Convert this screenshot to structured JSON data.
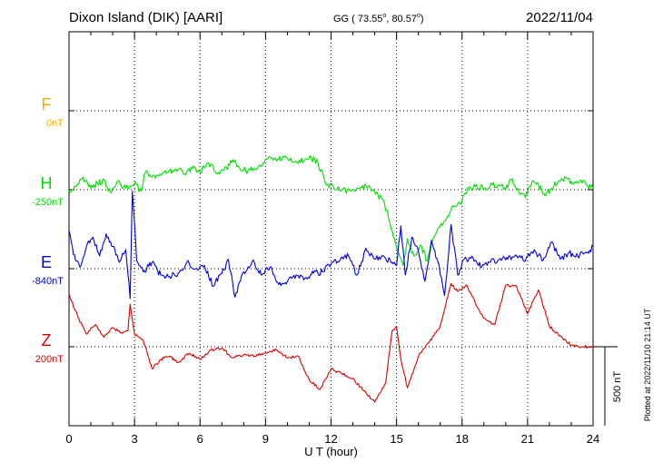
{
  "header": {
    "station": "Dixon Island (DIK)  [AARI]",
    "coords_prefix": "GG ( 73.55",
    "coords_mid": ",  80.57",
    "coords_suffix": ")",
    "degree_mark": "o",
    "date": "2022/11/04"
  },
  "footer": {
    "plotted_note": "Plotted at 2022/11/10 21:14 UT"
  },
  "chart_data": {
    "type": "line",
    "title": "Dixon Island (DIK)  [AARI]",
    "xlabel": "U T (hour)",
    "xlim": [
      0,
      24
    ],
    "x_ticks": [
      0,
      3,
      6,
      9,
      12,
      15,
      18,
      21,
      24
    ],
    "x_tick_labels": [
      "0",
      "3",
      "6",
      "9",
      "12",
      "15",
      "18",
      "21",
      "24"
    ],
    "grid": true,
    "scale_bar": {
      "label": "500 nT",
      "value_nT": 500
    },
    "colors": {
      "F": "#f0b400",
      "H": "#00e000",
      "E": "#0000dd",
      "Z": "#dd0000"
    },
    "series": [
      {
        "name": "F",
        "baseline_label": "0nT",
        "baseline_value": 0,
        "values": []
      },
      {
        "name": "H",
        "baseline_label": "-250nT",
        "baseline_value": -250,
        "x": [
          0,
          0.3,
          0.6,
          1.0,
          1.3,
          1.6,
          1.9,
          2.2,
          2.6,
          3.0,
          3.3,
          3.5,
          3.8,
          4.2,
          4.6,
          5.0,
          5.3,
          5.7,
          6.0,
          6.4,
          6.8,
          7.2,
          7.5,
          7.8,
          8.2,
          8.5,
          8.9,
          9.2,
          9.6,
          10.0,
          10.4,
          10.8,
          11.1,
          11.4,
          11.8,
          12.1,
          12.5,
          12.9,
          13.3,
          13.7,
          14.0,
          14.3,
          14.6,
          14.9,
          15.1,
          15.3,
          15.5,
          15.8,
          16.1,
          16.4,
          16.7,
          17.0,
          17.3,
          17.6,
          18.0,
          18.3,
          18.6,
          19.0,
          19.3,
          19.7,
          20.0,
          20.3,
          20.6,
          20.9,
          21.2,
          21.5,
          21.8,
          22.1,
          22.4,
          22.8,
          23.1,
          23.4,
          23.7,
          24.0
        ],
        "values": [
          -255,
          -230,
          -180,
          -240,
          -210,
          -190,
          -270,
          -200,
          -240,
          -210,
          -260,
          -140,
          -170,
          -160,
          -130,
          -120,
          -150,
          -100,
          -140,
          -80,
          -150,
          -110,
          -60,
          -110,
          -130,
          -120,
          -80,
          -40,
          -60,
          -50,
          -70,
          -60,
          -50,
          -80,
          -220,
          -230,
          -250,
          -260,
          -240,
          -230,
          -270,
          -300,
          -400,
          -560,
          -650,
          -730,
          -560,
          -670,
          -600,
          -700,
          -550,
          -480,
          -430,
          -360,
          -320,
          -240,
          -230,
          -240,
          -220,
          -220,
          -250,
          -180,
          -270,
          -300,
          -200,
          -220,
          -290,
          -240,
          -200,
          -180,
          -210,
          -190,
          -220,
          -240
        ]
      },
      {
        "name": "E",
        "baseline_label": "-840nT",
        "baseline_value": -840,
        "x": [
          0,
          0.2,
          0.5,
          0.8,
          1.1,
          1.4,
          1.7,
          2.0,
          2.3,
          2.6,
          2.8,
          2.9,
          3.1,
          3.4,
          3.8,
          4.2,
          4.6,
          5.0,
          5.4,
          5.8,
          6.2,
          6.6,
          7.0,
          7.3,
          7.6,
          8.0,
          8.4,
          8.8,
          9.2,
          9.6,
          10.0,
          10.4,
          10.8,
          11.2,
          11.6,
          12.0,
          12.4,
          12.8,
          13.2,
          13.6,
          14.0,
          14.4,
          14.8,
          15.0,
          15.2,
          15.4,
          15.7,
          16.0,
          16.3,
          16.6,
          16.9,
          17.2,
          17.5,
          17.8,
          18.1,
          18.5,
          18.9,
          19.3,
          19.7,
          20.1,
          20.5,
          20.9,
          21.3,
          21.7,
          22.1,
          22.5,
          22.9,
          23.3,
          23.7,
          24.0
        ],
        "values": [
          -600,
          -750,
          -830,
          -700,
          -640,
          -760,
          -620,
          -700,
          -800,
          -720,
          -1030,
          -350,
          -790,
          -860,
          -800,
          -880,
          -890,
          -870,
          -800,
          -840,
          -820,
          -950,
          -870,
          -780,
          -1020,
          -860,
          -790,
          -880,
          -830,
          -940,
          -920,
          -880,
          -900,
          -870,
          -860,
          -810,
          -790,
          -760,
          -880,
          -710,
          -780,
          -760,
          -800,
          -820,
          -570,
          -880,
          -640,
          -730,
          -920,
          -660,
          -800,
          -1010,
          -560,
          -880,
          -780,
          -770,
          -830,
          -800,
          -780,
          -780,
          -760,
          -790,
          -720,
          -790,
          -670,
          -780,
          -740,
          -760,
          -740,
          -700
        ]
      },
      {
        "name": "Z",
        "baseline_label": "200nT",
        "baseline_value": 200,
        "x": [
          0,
          0.4,
          0.8,
          1.2,
          1.6,
          2.0,
          2.4,
          2.7,
          2.8,
          3.0,
          3.4,
          3.8,
          4.2,
          4.6,
          5.0,
          5.5,
          6.0,
          6.5,
          7.0,
          7.5,
          8.0,
          8.5,
          9.0,
          9.5,
          10.0,
          10.5,
          11.0,
          11.5,
          12.0,
          12.5,
          13.0,
          13.5,
          14.0,
          14.5,
          14.8,
          15.0,
          15.2,
          15.5,
          16.0,
          16.5,
          17.0,
          17.5,
          17.8,
          18.2,
          18.6,
          19.0,
          19.5,
          20.0,
          20.5,
          21.0,
          21.5,
          22.0,
          22.5,
          23.0,
          23.5,
          24.0
        ],
        "values": [
          530,
          390,
          280,
          340,
          260,
          320,
          290,
          300,
          470,
          280,
          240,
          60,
          120,
          140,
          100,
          160,
          120,
          180,
          190,
          130,
          150,
          140,
          160,
          180,
          130,
          140,
          -10,
          -70,
          60,
          30,
          0,
          -80,
          -150,
          -30,
          300,
          330,
          120,
          -60,
          140,
          230,
          330,
          600,
          550,
          590,
          480,
          380,
          340,
          590,
          580,
          410,
          560,
          330,
          270,
          210,
          200,
          200
        ]
      }
    ]
  }
}
